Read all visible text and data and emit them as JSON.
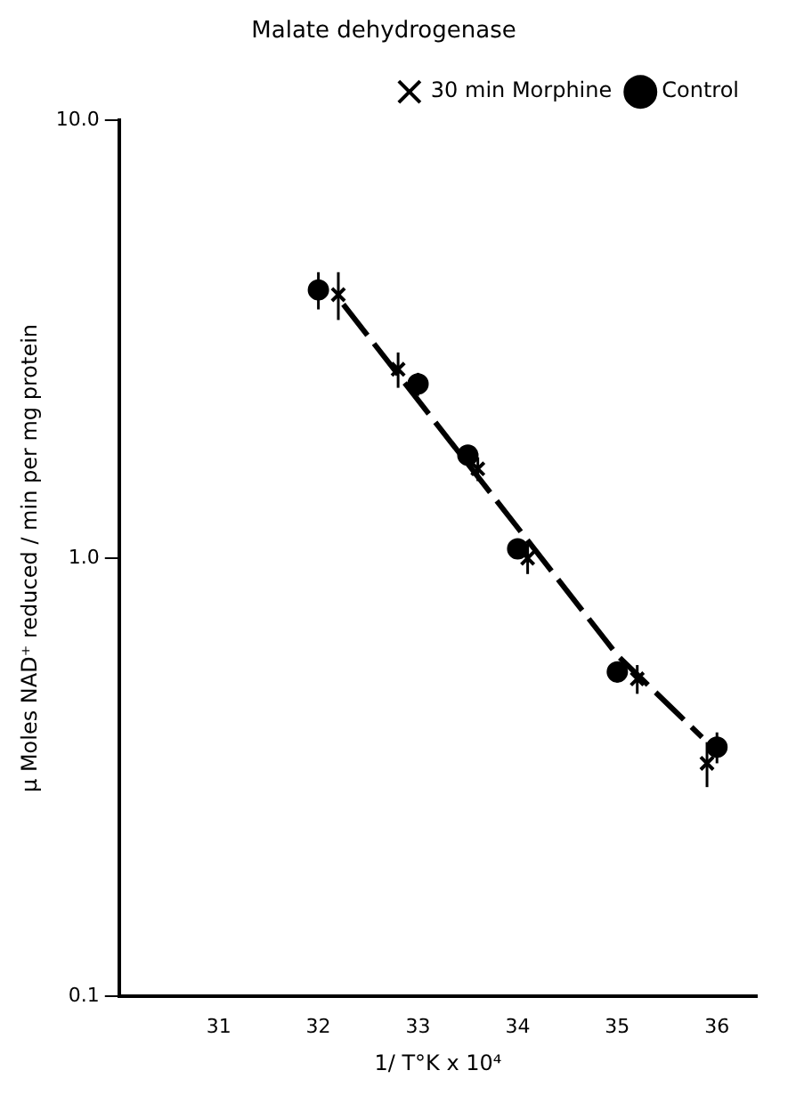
{
  "chart_data": {
    "type": "scatter",
    "title": "Malate dehydrogenase",
    "xlabel": "1/ T°K x 10⁴",
    "ylabel": "μ Moles NAD⁺ reduced / min per mg protein",
    "log": "y",
    "xlim": [
      30,
      36.4
    ],
    "xticks": [
      31,
      32,
      33,
      34,
      35,
      36
    ],
    "ylim": [
      0.1,
      10
    ],
    "yticks": [
      {
        "value": 0.1,
        "label": "0.1"
      },
      {
        "value": 1,
        "label": "1.0"
      },
      {
        "value": 10,
        "label": "10.0"
      }
    ],
    "grid": false,
    "legend": "top right",
    "series": [
      {
        "name": "30 min Morphine",
        "color": "#000000",
        "marker": "cross",
        "x": [
          32.2,
          32.8,
          33.6,
          34.1,
          35.2,
          35.9
        ],
        "values": [
          4.0,
          2.7,
          1.6,
          1.0,
          0.53,
          0.34
        ],
        "errors": [
          0.5,
          0.25,
          0.1,
          0.08,
          0.04,
          0.04
        ]
      },
      {
        "name": "Control",
        "color": "#000000",
        "marker": "circle",
        "x": [
          32.0,
          33.0,
          33.5,
          34.0,
          35.0,
          36.0
        ],
        "values": [
          4.1,
          2.5,
          1.72,
          1.05,
          0.55,
          0.37
        ],
        "errors": [
          0.4,
          0.15,
          0.08,
          0.05,
          0.03,
          0.03
        ]
      },
      {
        "type": "line",
        "color": "#000000",
        "marker": "none",
        "line_style": "dashed",
        "x": [
          32.25,
          35.0,
          35.85
        ],
        "values": [
          3.8,
          0.6,
          0.39
        ]
      }
    ]
  }
}
